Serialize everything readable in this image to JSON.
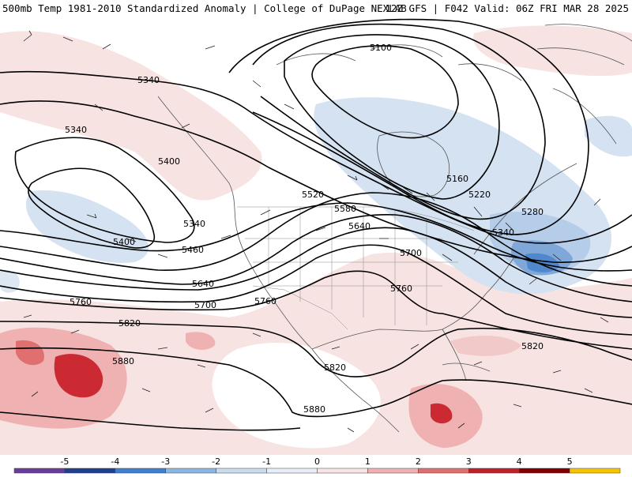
{
  "header": {
    "left_title": "500mb Temp 1981-2010 Standardized Anomaly | College of DuPage NEXLAB",
    "right_title": "12Z GFS | F042 Valid: 06Z FRI MAR 28 2025"
  },
  "colorbar": {
    "ticks": [
      "-5",
      "-4",
      "-3",
      "-2",
      "-1",
      "0",
      "1",
      "2",
      "3",
      "4",
      "5"
    ],
    "colors": [
      "#6a3d9a",
      "#1f3f8f",
      "#3f7fd0",
      "#8bb6e0",
      "#c9dcef",
      "#e6eef7",
      "#f7e4e4",
      "#efb1b1",
      "#e07070",
      "#c0202a",
      "#800000",
      "#f5c400"
    ]
  },
  "contour_labels": [
    {
      "text": "5100"
    },
    {
      "text": "5340"
    },
    {
      "text": "5340"
    },
    {
      "text": "5400"
    },
    {
      "text": "5520"
    },
    {
      "text": "5160"
    },
    {
      "text": "5220"
    },
    {
      "text": "5280"
    },
    {
      "text": "5580"
    },
    {
      "text": "5640"
    },
    {
      "text": "5340"
    },
    {
      "text": "5340"
    },
    {
      "text": "5400"
    },
    {
      "text": "5460"
    },
    {
      "text": "5700"
    },
    {
      "text": "5640"
    },
    {
      "text": "5760"
    },
    {
      "text": "5700"
    },
    {
      "text": "5760"
    },
    {
      "text": "5760"
    },
    {
      "text": "5820"
    },
    {
      "text": "5820"
    },
    {
      "text": "5880"
    },
    {
      "text": "5820"
    },
    {
      "text": "5880"
    }
  ]
}
